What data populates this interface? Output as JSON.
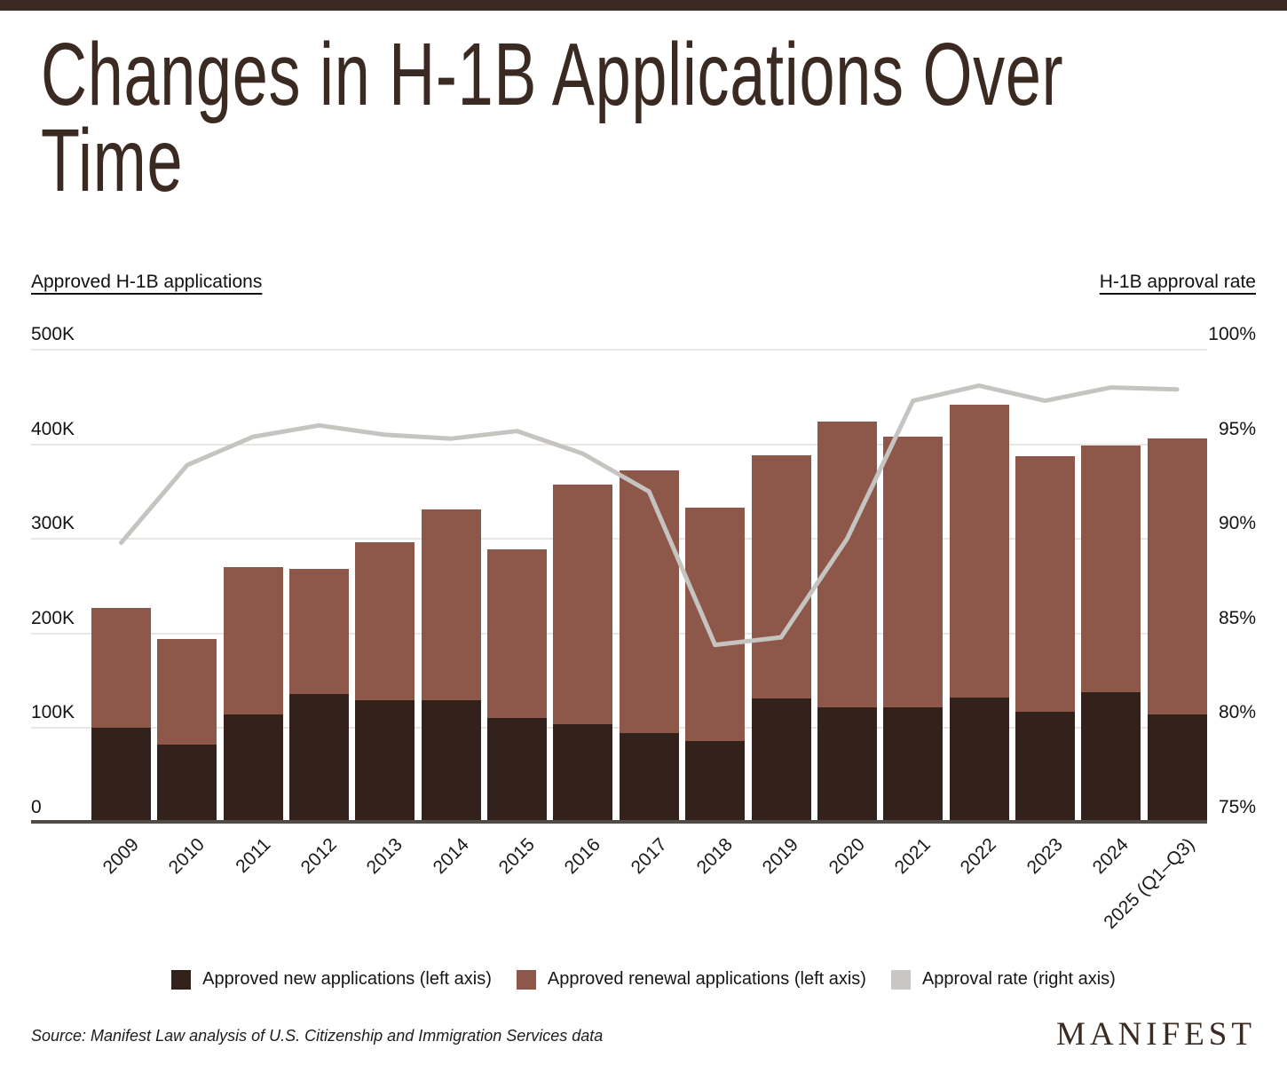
{
  "page": {
    "title_line1": "Changes in H-1B Applications Over",
    "title_line2": "Time",
    "source": "Source: Manifest Law analysis of U.S. Citizenship and Immigration Services data",
    "logo": "MANIFEST"
  },
  "axes": {
    "left_header": "Approved H-1B applications",
    "right_header": "H-1B approval rate"
  },
  "legend": {
    "items": [
      {
        "label": "Approved new applications (left axis)",
        "color": "#32221b"
      },
      {
        "label": "Approved renewal applications (left axis)",
        "color": "#8d584a"
      },
      {
        "label": "Approval rate (right axis)",
        "color": "#c9c7c5"
      }
    ]
  },
  "colors": {
    "new_bar": "#32221b",
    "renewal_bar": "#8d584a",
    "rate_line": "#c6c4c1",
    "gridline": "#e9e6e3",
    "axis_baseline": "#514b47",
    "accent_brown": "#3a2a22"
  },
  "chart_data": {
    "type": "bar",
    "subtype": "stacked-bars-with-line",
    "title": "Changes in H-1B Applications Over Time",
    "categories": [
      "2009",
      "2010",
      "2011",
      "2012",
      "2013",
      "2014",
      "2015",
      "2016",
      "2017",
      "2018",
      "2019",
      "2020",
      "2021",
      "2022",
      "2023",
      "2024",
      "2025 (Q1–Q3)"
    ],
    "series": [
      {
        "name": "Approved new applications (left axis)",
        "type": "bar-stack-bottom",
        "axis": "left",
        "unit": "thousands",
        "values": [
          100,
          83,
          114,
          136,
          129,
          129,
          111,
          104,
          95,
          86,
          131,
          122,
          122,
          132,
          117,
          138,
          114
        ]
      },
      {
        "name": "Approved renewal applications (left axis)",
        "type": "bar-stack-top",
        "axis": "left",
        "unit": "thousands",
        "values": [
          127,
          111,
          156,
          132,
          167,
          202,
          178,
          253,
          277,
          247,
          257,
          302,
          286,
          310,
          270,
          261,
          292
        ]
      },
      {
        "name": "Approval rate (right axis)",
        "type": "line",
        "axis": "right",
        "unit": "percent",
        "values": [
          89.8,
          93.9,
          95.4,
          96.0,
          95.5,
          95.3,
          95.7,
          94.5,
          92.5,
          84.4,
          84.8,
          90.0,
          97.3,
          98.1,
          97.3,
          98.0,
          97.9
        ]
      }
    ],
    "left_axis": {
      "label": "Approved H-1B applications",
      "range": [
        0,
        500
      ],
      "unit": "K",
      "ticks": [
        {
          "label": "0",
          "value": 0
        },
        {
          "label": "100K",
          "value": 100
        },
        {
          "label": "200K",
          "value": 200
        },
        {
          "label": "300K",
          "value": 300
        },
        {
          "label": "400K",
          "value": 400
        },
        {
          "label": "500K",
          "value": 500
        }
      ]
    },
    "right_axis": {
      "label": "H-1B approval rate",
      "range": [
        75,
        100
      ],
      "unit": "%",
      "ticks": [
        {
          "label": "75%",
          "value": 75
        },
        {
          "label": "80%",
          "value": 80
        },
        {
          "label": "85%",
          "value": 85
        },
        {
          "label": "90%",
          "value": 90
        },
        {
          "label": "95%",
          "value": 95
        },
        {
          "label": "100%",
          "value": 100
        }
      ]
    },
    "grid": true,
    "legend_position": "bottom"
  }
}
